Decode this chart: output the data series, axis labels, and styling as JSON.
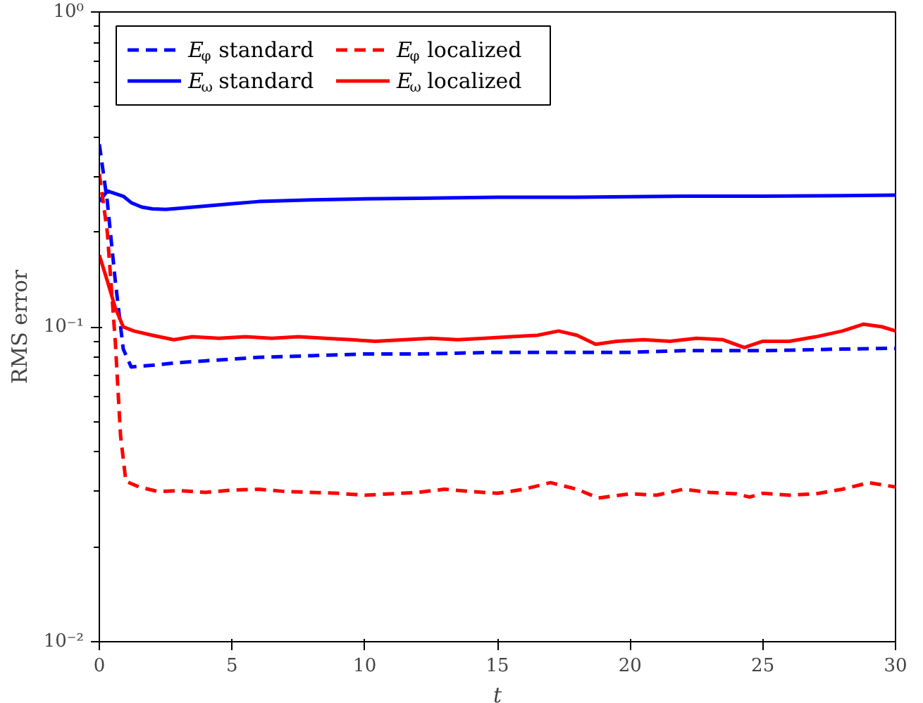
{
  "chart_data": {
    "type": "line",
    "xlabel": "t",
    "ylabel": "RMS error",
    "log": "y",
    "grid": false,
    "legend": "top left",
    "xlim": [
      0,
      30
    ],
    "ylim": [
      0.01,
      1
    ],
    "xticks": [
      0,
      5,
      10,
      15,
      20,
      25,
      30
    ],
    "yticks": [
      {
        "value": 0.01,
        "label": "10⁻²"
      },
      {
        "value": 0.1,
        "label": "10⁻¹"
      },
      {
        "value": 1,
        "label": "10⁰"
      }
    ],
    "series": [
      {
        "name": "E$_{φ}$ standard",
        "color": "#0000ff",
        "line_style": "dashed",
        "x": [
          0,
          0.3,
          0.6,
          0.9,
          1.2,
          1.5,
          2,
          3,
          4,
          5,
          6,
          8,
          10,
          12,
          15,
          18,
          20,
          22,
          25,
          28,
          30
        ],
        "values": [
          0.38,
          0.25,
          0.14,
          0.085,
          0.0746,
          0.075,
          0.0755,
          0.077,
          0.078,
          0.079,
          0.08,
          0.081,
          0.082,
          0.082,
          0.083,
          0.083,
          0.083,
          0.084,
          0.084,
          0.085,
          0.0855
        ]
      },
      {
        "name": "E$_{ω}$ standard",
        "color": "#0000ff",
        "line_style": "solid",
        "x": [
          0,
          0.15,
          0.3,
          0.6,
          0.9,
          1.2,
          1.6,
          2,
          2.5,
          3,
          4,
          5,
          6,
          8,
          10,
          12,
          15,
          18,
          20,
          22,
          25,
          28,
          30
        ],
        "values": [
          0.25,
          0.26,
          0.27,
          0.265,
          0.26,
          0.248,
          0.24,
          0.237,
          0.236,
          0.238,
          0.242,
          0.246,
          0.25,
          0.253,
          0.255,
          0.256,
          0.258,
          0.258,
          0.259,
          0.26,
          0.26,
          0.261,
          0.262
        ]
      },
      {
        "name": "E$_{φ}$ localized",
        "color": "#ff0000",
        "line_style": "dashed",
        "x": [
          0,
          0.3,
          0.6,
          0.8,
          1.0,
          1.5,
          2.2,
          3,
          4,
          5,
          6,
          7,
          8,
          9,
          10,
          11,
          12,
          13,
          14,
          15,
          16,
          17,
          18,
          18.8,
          20,
          21,
          22,
          23,
          24,
          24.5,
          25,
          26,
          27,
          28,
          29,
          30
        ],
        "values": [
          0.306,
          0.2,
          0.09,
          0.045,
          0.0323,
          0.031,
          0.03,
          0.0302,
          0.0298,
          0.0303,
          0.0305,
          0.03,
          0.0298,
          0.0296,
          0.0292,
          0.0295,
          0.0298,
          0.0305,
          0.03,
          0.0296,
          0.0305,
          0.032,
          0.0305,
          0.0286,
          0.0295,
          0.0292,
          0.0305,
          0.0298,
          0.0295,
          0.0288,
          0.0296,
          0.0292,
          0.0295,
          0.0305,
          0.032,
          0.031
        ]
      },
      {
        "name": "E$_{ω}$ localized",
        "color": "#ff0000",
        "line_style": "solid",
        "x": [
          0,
          0.3,
          0.6,
          0.9,
          1.3,
          2,
          2.8,
          3.5,
          4.5,
          5.5,
          6.5,
          7.5,
          8.5,
          9.5,
          10.4,
          11.5,
          12.5,
          13.5,
          14.5,
          15.5,
          16.5,
          17.3,
          18,
          18.7,
          19.5,
          20.5,
          21.5,
          22.5,
          23.5,
          24.3,
          25,
          26,
          27,
          28,
          28.8,
          29.5,
          30
        ],
        "values": [
          0.169,
          0.14,
          0.115,
          0.1,
          0.097,
          0.094,
          0.091,
          0.093,
          0.092,
          0.093,
          0.092,
          0.093,
          0.092,
          0.091,
          0.09,
          0.091,
          0.092,
          0.091,
          0.092,
          0.093,
          0.094,
          0.097,
          0.094,
          0.088,
          0.09,
          0.091,
          0.09,
          0.092,
          0.091,
          0.086,
          0.09,
          0.09,
          0.093,
          0.097,
          0.102,
          0.1,
          0.097
        ]
      }
    ]
  }
}
